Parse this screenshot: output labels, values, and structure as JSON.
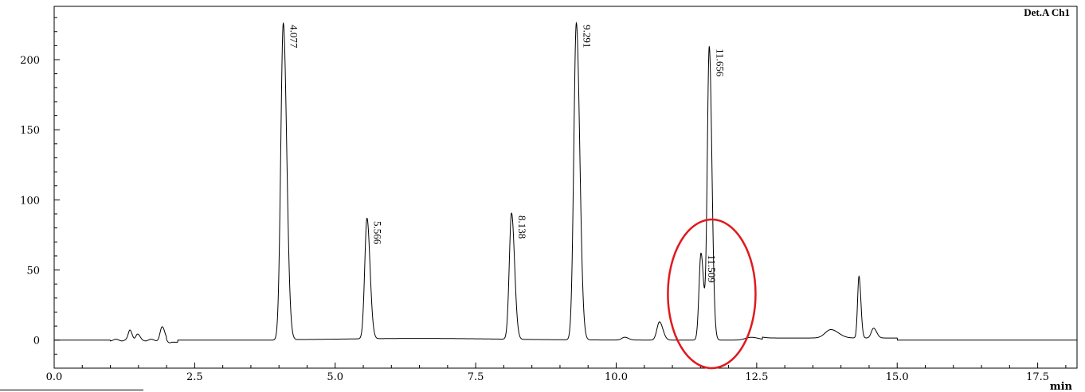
{
  "chart_data": {
    "type": "line",
    "detector_label": "Det.A Ch1",
    "xlabel": "min",
    "ylabel": "",
    "xlim": [
      0.0,
      18.2
    ],
    "ylim": [
      -20,
      238
    ],
    "x_ticks": [
      "0.0",
      "2.5",
      "5.0",
      "7.5",
      "10.0",
      "12.5",
      "15.0",
      "17.5"
    ],
    "x_tick_values": [
      0.0,
      2.5,
      5.0,
      7.5,
      10.0,
      12.5,
      15.0,
      17.5
    ],
    "y_ticks": [
      "0",
      "50",
      "100",
      "150",
      "200"
    ],
    "y_tick_values": [
      0,
      50,
      100,
      150,
      200
    ],
    "baseline": 0,
    "peaks": [
      {
        "rt": 1.35,
        "height": 7,
        "width": 0.03
      },
      {
        "rt": 1.48,
        "height": 4,
        "width": 0.03
      },
      {
        "rt": 1.92,
        "height": 9,
        "width": 0.035
      },
      {
        "rt": 4.077,
        "height": 226,
        "width": 0.045
      },
      {
        "rt": 5.566,
        "height": 86,
        "width": 0.04
      },
      {
        "rt": 8.138,
        "height": 90,
        "width": 0.04
      },
      {
        "rt": 9.291,
        "height": 226,
        "width": 0.045
      },
      {
        "rt": 10.15,
        "height": 2,
        "width": 0.05
      },
      {
        "rt": 10.77,
        "height": 13,
        "width": 0.045
      },
      {
        "rt": 11.509,
        "height": 62,
        "width": 0.035
      },
      {
        "rt": 11.656,
        "height": 209,
        "width": 0.035
      },
      {
        "rt": 12.4,
        "height": 2,
        "width": 0.1
      },
      {
        "rt": 13.82,
        "height": 6,
        "width": 0.1
      },
      {
        "rt": 14.32,
        "height": 44,
        "width": 0.025
      },
      {
        "rt": 14.58,
        "height": 7,
        "width": 0.04
      }
    ],
    "peak_labels": [
      {
        "text": "4.077",
        "rt": 4.077,
        "y": 226
      },
      {
        "text": "5.566",
        "rt": 5.566,
        "y": 86
      },
      {
        "text": "8.138",
        "rt": 8.138,
        "y": 90
      },
      {
        "text": "9.291",
        "rt": 9.291,
        "y": 226
      },
      {
        "text": "11.509",
        "rt": 11.509,
        "y": 62
      },
      {
        "text": "11.656",
        "rt": 11.656,
        "y": 209
      }
    ],
    "highlight": {
      "shape": "ellipse",
      "color": "#e0191e",
      "cx": 11.7,
      "cy": 33,
      "rx": 0.78,
      "ry": 53
    },
    "line_color": "#000000",
    "grid": false
  }
}
